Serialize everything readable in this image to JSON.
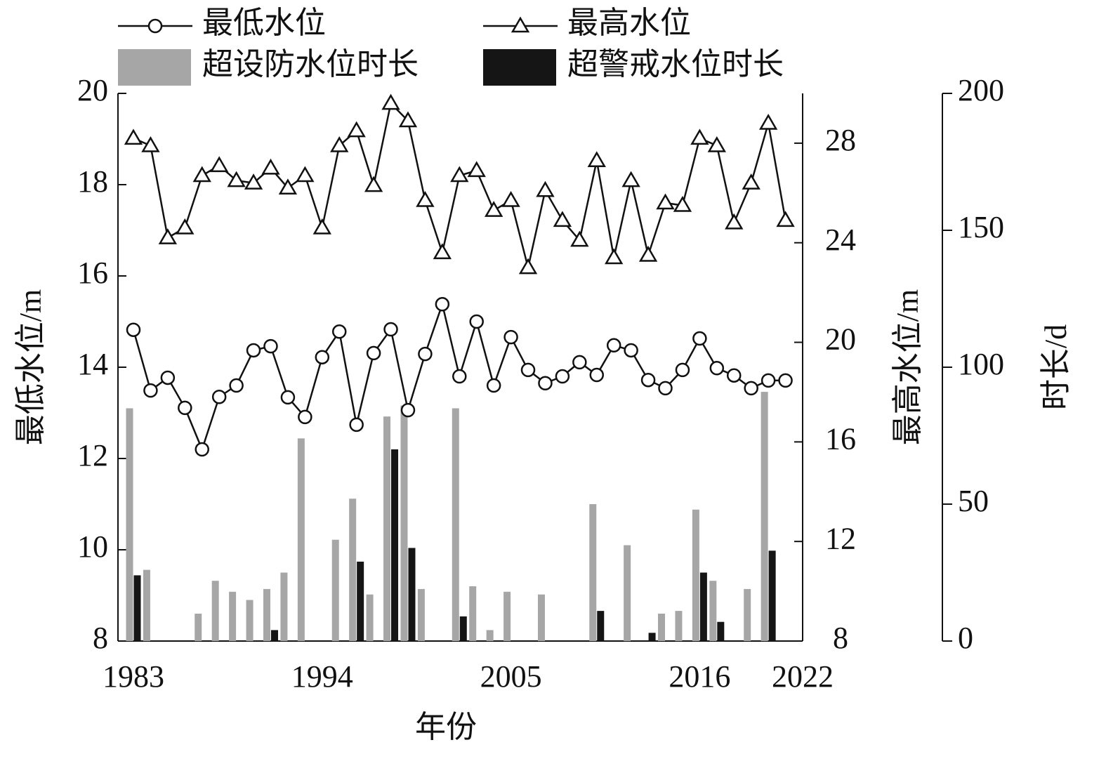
{
  "chart_data": {
    "type": "combo",
    "x_label": "年份",
    "y_label": "最低水位/m",
    "y2_label": "最高水位/m",
    "y3_label": "时长/d",
    "x": [
      1983,
      1984,
      1985,
      1986,
      1987,
      1988,
      1989,
      1990,
      1991,
      1992,
      1993,
      1994,
      1995,
      1996,
      1997,
      1998,
      1999,
      2000,
      2001,
      2002,
      2003,
      2004,
      2005,
      2006,
      2007,
      2008,
      2009,
      2010,
      2011,
      2012,
      2013,
      2014,
      2015,
      2016,
      2017,
      2018,
      2019,
      2020,
      2021
    ],
    "xlim": [
      1982.1,
      2022
    ],
    "xticks": [
      1983,
      1994,
      2005,
      2016,
      2022
    ],
    "ylim": [
      8,
      20
    ],
    "yticks": [
      8,
      10,
      12,
      14,
      16,
      18,
      20
    ],
    "y2lim": [
      8,
      30
    ],
    "y2ticks": [
      8,
      12,
      16,
      20,
      24,
      28
    ],
    "y3lim": [
      0,
      200
    ],
    "y3ticks": [
      0,
      50,
      100,
      150,
      200
    ],
    "series": [
      {
        "name": "最低水位",
        "type": "line",
        "marker": "circle",
        "color": "#111111",
        "axis": "y",
        "values": [
          14.82,
          13.49,
          13.77,
          13.11,
          12.2,
          13.35,
          13.6,
          14.37,
          14.46,
          13.34,
          12.91,
          14.22,
          14.78,
          12.74,
          14.31,
          14.83,
          13.06,
          14.29,
          15.38,
          13.8,
          15.0,
          13.6,
          14.66,
          13.94,
          13.65,
          13.8,
          14.11,
          13.83,
          14.48,
          14.37,
          13.72,
          13.54,
          13.94,
          14.63,
          13.98,
          13.82,
          13.54,
          13.71,
          13.71
        ]
      },
      {
        "name": "最高水位",
        "type": "line",
        "marker": "triangle",
        "color": "#111111",
        "axis": "y2",
        "values": [
          28.2,
          27.9,
          24.2,
          24.6,
          26.7,
          27.1,
          26.5,
          26.4,
          27.0,
          26.2,
          26.7,
          24.6,
          27.9,
          28.5,
          26.3,
          29.6,
          28.9,
          25.7,
          23.6,
          26.7,
          26.9,
          25.3,
          25.7,
          23.0,
          26.1,
          24.9,
          24.1,
          27.3,
          23.4,
          26.5,
          23.5,
          25.6,
          25.5,
          28.2,
          27.9,
          24.8,
          26.4,
          28.8,
          24.9
        ]
      },
      {
        "name": "超设防水位时长",
        "type": "bar",
        "color": "#a6a6a6",
        "axis": "y3",
        "values": [
          85,
          26,
          0,
          0,
          10,
          22,
          18,
          15,
          19,
          25,
          74,
          0,
          37,
          52,
          17,
          82,
          86,
          19,
          0,
          85,
          20,
          4,
          18,
          0,
          17,
          0,
          0,
          50,
          0,
          35,
          0,
          10,
          11,
          48,
          22,
          0,
          19,
          91,
          0
        ]
      },
      {
        "name": "超警戒水位时长",
        "type": "bar",
        "color": "#151515",
        "axis": "y3",
        "values": [
          24,
          0,
          0,
          0,
          0,
          0,
          0,
          0,
          4,
          0,
          0,
          0,
          0,
          29,
          0,
          70,
          34,
          0,
          0,
          9,
          0,
          0,
          0,
          0,
          0,
          0,
          0,
          11,
          0,
          0,
          3,
          0,
          0,
          25,
          7,
          0,
          0,
          33,
          0
        ]
      }
    ]
  }
}
